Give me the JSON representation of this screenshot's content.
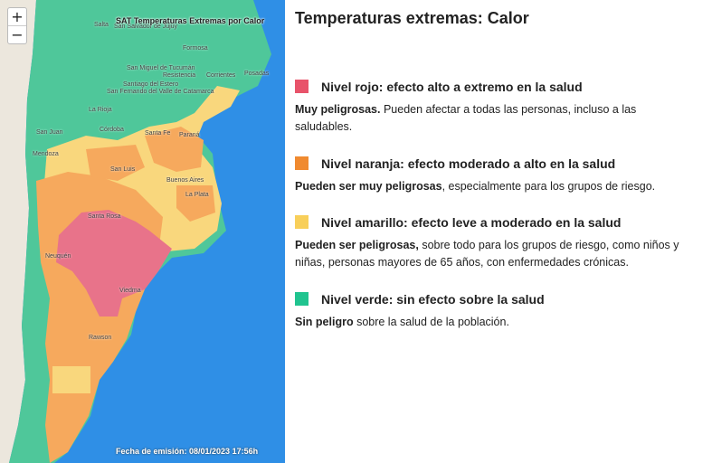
{
  "map": {
    "title": "SAT Temperaturas Extremas por Calor",
    "emission": "Fecha de emisión: 08/01/2023 17:56h",
    "zoom_in": "+",
    "zoom_out": "−",
    "cities": [
      "Salta",
      "San Salvador de Jujuy",
      "Formosa",
      "San Miguel de Tucumán",
      "Resistencia",
      "Corrientes",
      "Posadas",
      "Santiago del Estero",
      "San Fernando del Valle de Catamarca",
      "La Rioja",
      "Córdoba",
      "San Juan",
      "Mendoza",
      "San Luis",
      "Santa Fe",
      "Paraná",
      "Buenos Aires",
      "La Plata",
      "Santa Rosa",
      "Neuquén",
      "Viedma",
      "Rawson"
    ]
  },
  "legend": {
    "title": "Temperaturas extremas: Calor",
    "levels": [
      {
        "color": "#e8536a",
        "title": "Nivel rojo: efecto alto a extremo en la salud",
        "strong": "Muy peligrosas.",
        "text": " Pueden afectar a todas las personas, incluso a las saludables."
      },
      {
        "color": "#f08a30",
        "title": "Nivel naranja: efecto moderado a alto en la salud",
        "strong": "Pueden ser muy peligrosas",
        "text": ", especialmente para los grupos de riesgo."
      },
      {
        "color": "#f8cf5a",
        "title": "Nivel amarillo: efecto leve a moderado en la salud",
        "strong": "Pueden ser peligrosas,",
        "text": " sobre todo para los grupos de riesgo, como niños y niñas, personas mayores de 65 años, con enfermedades crónicas."
      },
      {
        "color": "#20c48f",
        "title": "Nivel verde: sin efecto sobre la salud",
        "strong": "Sin peligro",
        "text": " sobre la salud de la población."
      }
    ]
  }
}
